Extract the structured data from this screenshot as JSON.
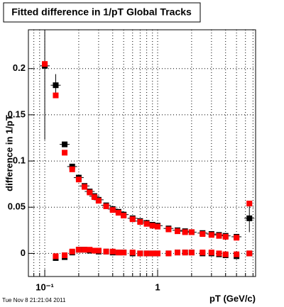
{
  "chart_data": {
    "type": "scatter",
    "title": "Fitted difference in 1/pT  Global Tracks",
    "xlabel": "pT (GeV/c)",
    "ylabel": "difference in 1/pT",
    "footer": "Tue Nov  8 21:21:04 2011",
    "xlog": true,
    "grid": true,
    "x": [
      0.1,
      0.125,
      0.15,
      0.175,
      0.2,
      0.225,
      0.25,
      0.275,
      0.3,
      0.35,
      0.4,
      0.45,
      0.5,
      0.6,
      0.7,
      0.8,
      0.9,
      1.0,
      1.25,
      1.5,
      1.75,
      2,
      2.5,
      3,
      3.5,
      4,
      5,
      6.5
    ],
    "series": [
      {
        "color": "#000000",
        "values": [
          0.203,
          0.182,
          0.118,
          0.094,
          0.082,
          0.073,
          0.067,
          0.062,
          0.058,
          0.052,
          0.048,
          0.045,
          0.042,
          0.038,
          0.035,
          0.033,
          0.031,
          0.03,
          0.027,
          0.025,
          0.024,
          0.023,
          0.022,
          0.021,
          0.02,
          0.019,
          0.018,
          0.038
        ],
        "errors": [
          0.08,
          0.012,
          0.002,
          0.001,
          0.001,
          0.001,
          0.001,
          0.001,
          0.001,
          0.001,
          0.001,
          0.001,
          0.001,
          0.001,
          0.001,
          0.001,
          0.001,
          0.001,
          0.001,
          0.001,
          0.001,
          0.001,
          0.001,
          0.001,
          0.001,
          0.002,
          0.003,
          0.015
        ]
      },
      {
        "color": "#ff0000",
        "values": [
          0.205,
          0.171,
          0.109,
          0.091,
          0.08,
          0.072,
          0.066,
          0.061,
          0.057,
          0.051,
          0.047,
          0.044,
          0.041,
          0.037,
          0.034,
          0.032,
          0.03,
          0.029,
          0.026,
          0.024,
          0.023,
          0.023,
          0.021,
          0.02,
          0.019,
          0.018,
          0.017,
          0.054
        ]
      },
      {
        "color": "#000000",
        "values": [
          null,
          -0.005,
          -0.004,
          0.001,
          0.004,
          0.004,
          0.003,
          0.003,
          0.002,
          0.002,
          0.001,
          0.001,
          0.001,
          0.0,
          0.0,
          0.0,
          0.0,
          0.0,
          0.0,
          0.001,
          0.001,
          0.001,
          0.0,
          0.0,
          -0.001,
          -0.002,
          -0.003,
          0.0
        ]
      },
      {
        "color": "#ff0000",
        "values": [
          null,
          -0.003,
          -0.002,
          0.002,
          0.004,
          0.004,
          0.004,
          0.003,
          0.003,
          0.002,
          0.002,
          0.001,
          0.001,
          0.001,
          0.0,
          0.0,
          0.0,
          0.0,
          0.0,
          0.001,
          0.001,
          0.001,
          0.001,
          0.001,
          0.0,
          -0.001,
          -0.001,
          0.0
        ]
      }
    ],
    "xlim": [
      0.0716,
      7.38
    ],
    "ylim": [
      -0.025,
      0.242
    ],
    "xticks": [
      {
        "value": 0.1,
        "label": "10⁻¹"
      },
      1
    ],
    "xminorticks": [
      0.08,
      0.09,
      0.2,
      0.3,
      0.4,
      0.5,
      0.6,
      0.7,
      0.8,
      0.9,
      2,
      3,
      4,
      5,
      6,
      7
    ],
    "yticks": [
      0,
      0.05,
      0.1,
      0.15,
      0.2
    ]
  }
}
